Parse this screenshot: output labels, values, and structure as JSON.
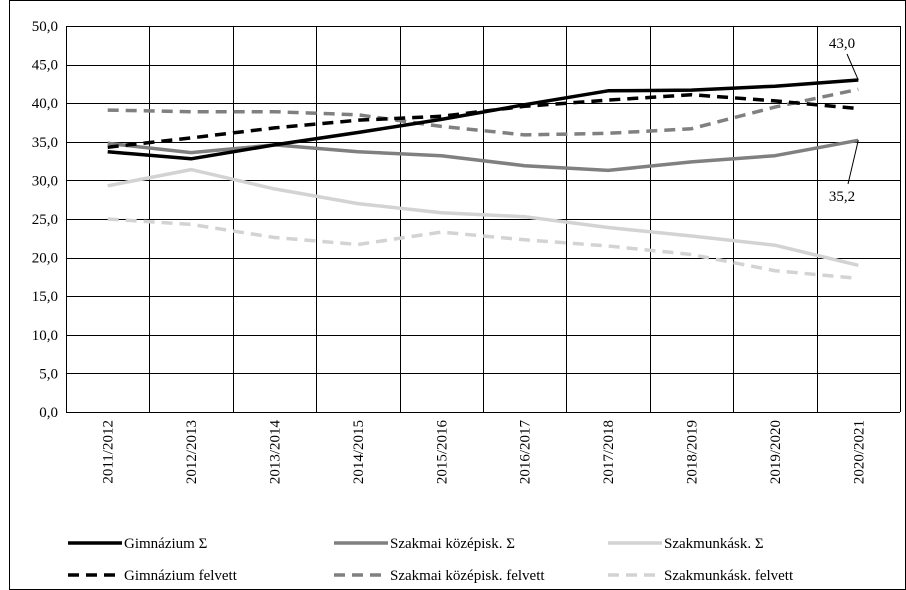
{
  "chart_data": {
    "type": "line",
    "title": "",
    "xlabel": "",
    "ylabel": "",
    "ylim": [
      0,
      50
    ],
    "ytick_step": 5,
    "yticks": [
      "0,0",
      "5,0",
      "10,0",
      "15,0",
      "20,0",
      "25,0",
      "30,0",
      "35,0",
      "40,0",
      "45,0",
      "50,0"
    ],
    "grid": true,
    "legend_position": "bottom",
    "categories": [
      "2011/2012",
      "2012/2013",
      "2013/2014",
      "2014/2015",
      "2015/2016",
      "2016/2017",
      "2017/2018",
      "2018/2019",
      "2019/2020",
      "2020/2021"
    ],
    "series": [
      {
        "name": "Gimnázium Σ",
        "color": "#000000",
        "dash": "solid",
        "values": [
          33.7,
          32.8,
          34.6,
          36.2,
          37.9,
          39.8,
          41.6,
          41.7,
          42.2,
          43.0
        ]
      },
      {
        "name": "Szakmai középisk.  Σ",
        "color": "#808080",
        "dash": "solid",
        "values": [
          34.8,
          33.6,
          34.6,
          33.7,
          33.2,
          31.9,
          31.3,
          32.4,
          33.2,
          35.2
        ]
      },
      {
        "name": "Szakmunkásk.  Σ",
        "color": "#d3d3d3",
        "dash": "solid",
        "values": [
          29.3,
          31.4,
          28.9,
          27.0,
          25.8,
          25.3,
          23.9,
          22.8,
          21.6,
          19.0
        ]
      },
      {
        "name": "Gimnázium felvett",
        "color": "#000000",
        "dash": "dashed",
        "values": [
          34.3,
          35.5,
          36.8,
          37.8,
          38.3,
          39.6,
          40.4,
          41.1,
          40.3,
          39.3
        ]
      },
      {
        "name": "Szakmai középisk. felvett",
        "color": "#808080",
        "dash": "dashed",
        "values": [
          39.1,
          38.9,
          38.9,
          38.5,
          37.0,
          35.9,
          36.1,
          36.7,
          39.5,
          41.8
        ]
      },
      {
        "name": "Szakmunkásk. felvett",
        "color": "#d3d3d3",
        "dash": "dashed",
        "values": [
          25.0,
          24.3,
          22.6,
          21.7,
          23.3,
          22.3,
          21.5,
          20.4,
          18.3,
          17.3
        ]
      }
    ],
    "annotations": [
      {
        "text": "43,0",
        "series": 0,
        "index": 9
      },
      {
        "text": "35,2",
        "series": 1,
        "index": 9
      }
    ]
  }
}
